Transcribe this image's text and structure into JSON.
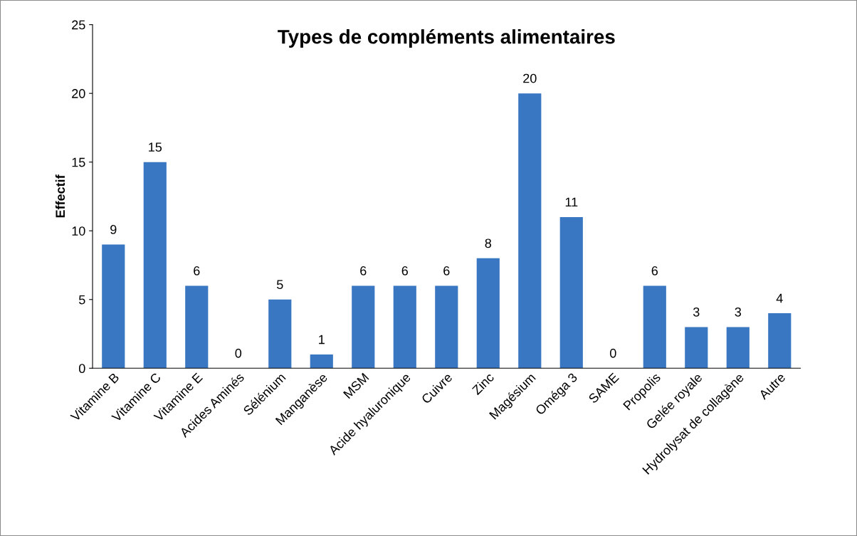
{
  "chart_data": {
    "type": "bar",
    "title": "Types de compléments alimentaires",
    "ylabel": "Effectif",
    "categories": [
      "Vitamine B",
      "Vitamine C",
      "Vitamine E",
      "Acides Aminés",
      "Sélénium",
      "Manganèse",
      "MSM",
      "Acide hyaluronique",
      "Cuivre",
      "Zinc",
      "Magésium",
      "Oméga 3",
      "SAME",
      "Propolis",
      "Gelée royale",
      "Hydrolysat de collagène",
      "Autre"
    ],
    "values": [
      9,
      15,
      6,
      0,
      5,
      1,
      6,
      6,
      6,
      8,
      20,
      11,
      0,
      6,
      3,
      3,
      4
    ],
    "color": "#3a77c2",
    "ylim": [
      0,
      25
    ],
    "yticks": [
      0,
      5,
      10,
      15,
      20,
      25
    ],
    "grid": false,
    "legend": false,
    "data_labels": true
  }
}
